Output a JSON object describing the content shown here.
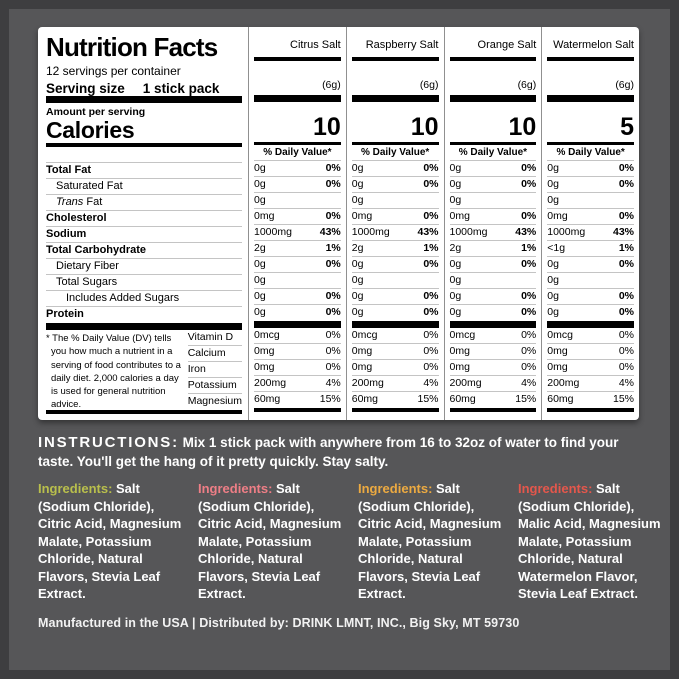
{
  "nutrition_panel": {
    "title": "Nutrition Facts",
    "servings_per_container": "12 servings per container",
    "serving_size_label": "Serving size",
    "serving_size_value": "1 stick pack",
    "amount_per_serving": "Amount per serving",
    "calories_label": "Calories",
    "daily_value_header": "% Daily Value*",
    "nutrient_rows": [
      {
        "label": "Total Fat",
        "indent": 0,
        "bold": true,
        "italic_first_word": false
      },
      {
        "label": "Saturated Fat",
        "indent": 1,
        "bold": false,
        "italic_first_word": false
      },
      {
        "label": "Trans Fat",
        "indent": 1,
        "bold": false,
        "italic_first_word": true
      },
      {
        "label": "Cholesterol",
        "indent": 0,
        "bold": true,
        "italic_first_word": false
      },
      {
        "label": "Sodium",
        "indent": 0,
        "bold": true,
        "italic_first_word": false
      },
      {
        "label": "Total Carbohydrate",
        "indent": 0,
        "bold": true,
        "italic_first_word": false
      },
      {
        "label": "Dietary Fiber",
        "indent": 1,
        "bold": false,
        "italic_first_word": false
      },
      {
        "label": "Total Sugars",
        "indent": 1,
        "bold": false,
        "italic_first_word": false
      },
      {
        "label": "Includes Added Sugars",
        "indent": 2,
        "bold": false,
        "italic_first_word": false
      },
      {
        "label": "Protein",
        "indent": 0,
        "bold": true,
        "italic_first_word": false
      }
    ],
    "micronutrient_labels": [
      "Vitamin D",
      "Calcium",
      "Iron",
      "Potassium",
      "Magnesium"
    ],
    "footnote": "* The % Daily Value (DV) tells you how much a nutrient in a serving of food contributes to a daily diet. 2,000 calories a day is used for general nutrition advice.",
    "flavor_columns": [
      {
        "name": "Citrus Salt",
        "serving_weight": "(6g)",
        "calories": "10",
        "nutrient_values": [
          {
            "amount": "0g",
            "dv": "0%"
          },
          {
            "amount": "0g",
            "dv": "0%"
          },
          {
            "amount": "0g",
            "dv": ""
          },
          {
            "amount": "0mg",
            "dv": "0%"
          },
          {
            "amount": "1000mg",
            "dv": "43%"
          },
          {
            "amount": "2g",
            "dv": "1%"
          },
          {
            "amount": "0g",
            "dv": "0%"
          },
          {
            "amount": "0g",
            "dv": ""
          },
          {
            "amount": "0g",
            "dv": "0%"
          },
          {
            "amount": "0g",
            "dv": "0%"
          }
        ],
        "micronutrient_values": [
          {
            "amount": "0mcg",
            "dv": "0%"
          },
          {
            "amount": "0mg",
            "dv": "0%"
          },
          {
            "amount": "0mg",
            "dv": "0%"
          },
          {
            "amount": "200mg",
            "dv": "4%"
          },
          {
            "amount": "60mg",
            "dv": "15%"
          }
        ]
      },
      {
        "name": "Raspberry Salt",
        "serving_weight": "(6g)",
        "calories": "10",
        "nutrient_values": [
          {
            "amount": "0g",
            "dv": "0%"
          },
          {
            "amount": "0g",
            "dv": "0%"
          },
          {
            "amount": "0g",
            "dv": ""
          },
          {
            "amount": "0mg",
            "dv": "0%"
          },
          {
            "amount": "1000mg",
            "dv": "43%"
          },
          {
            "amount": "2g",
            "dv": "1%"
          },
          {
            "amount": "0g",
            "dv": "0%"
          },
          {
            "amount": "0g",
            "dv": ""
          },
          {
            "amount": "0g",
            "dv": "0%"
          },
          {
            "amount": "0g",
            "dv": "0%"
          }
        ],
        "micronutrient_values": [
          {
            "amount": "0mcg",
            "dv": "0%"
          },
          {
            "amount": "0mg",
            "dv": "0%"
          },
          {
            "amount": "0mg",
            "dv": "0%"
          },
          {
            "amount": "200mg",
            "dv": "4%"
          },
          {
            "amount": "60mg",
            "dv": "15%"
          }
        ]
      },
      {
        "name": "Orange Salt",
        "serving_weight": "(6g)",
        "calories": "10",
        "nutrient_values": [
          {
            "amount": "0g",
            "dv": "0%"
          },
          {
            "amount": "0g",
            "dv": "0%"
          },
          {
            "amount": "0g",
            "dv": ""
          },
          {
            "amount": "0mg",
            "dv": "0%"
          },
          {
            "amount": "1000mg",
            "dv": "43%"
          },
          {
            "amount": "2g",
            "dv": "1%"
          },
          {
            "amount": "0g",
            "dv": "0%"
          },
          {
            "amount": "0g",
            "dv": ""
          },
          {
            "amount": "0g",
            "dv": "0%"
          },
          {
            "amount": "0g",
            "dv": "0%"
          }
        ],
        "micronutrient_values": [
          {
            "amount": "0mcg",
            "dv": "0%"
          },
          {
            "amount": "0mg",
            "dv": "0%"
          },
          {
            "amount": "0mg",
            "dv": "0%"
          },
          {
            "amount": "200mg",
            "dv": "4%"
          },
          {
            "amount": "60mg",
            "dv": "15%"
          }
        ]
      },
      {
        "name": "Watermelon Salt",
        "serving_weight": "(6g)",
        "calories": "5",
        "nutrient_values": [
          {
            "amount": "0g",
            "dv": "0%"
          },
          {
            "amount": "0g",
            "dv": "0%"
          },
          {
            "amount": "0g",
            "dv": ""
          },
          {
            "amount": "0mg",
            "dv": "0%"
          },
          {
            "amount": "1000mg",
            "dv": "43%"
          },
          {
            "amount": "<1g",
            "dv": "1%"
          },
          {
            "amount": "0g",
            "dv": "0%"
          },
          {
            "amount": "0g",
            "dv": ""
          },
          {
            "amount": "0g",
            "dv": "0%"
          },
          {
            "amount": "0g",
            "dv": "0%"
          }
        ],
        "micronutrient_values": [
          {
            "amount": "0mcg",
            "dv": "0%"
          },
          {
            "amount": "0mg",
            "dv": "0%"
          },
          {
            "amount": "0mg",
            "dv": "0%"
          },
          {
            "amount": "200mg",
            "dv": "4%"
          },
          {
            "amount": "60mg",
            "dv": "15%"
          }
        ]
      }
    ]
  },
  "instructions": {
    "label": "INSTRUCTIONS:",
    "text": "Mix 1 stick pack with anywhere from 16 to 32oz of water to find your taste. You'll get the hang of it pretty quickly. Stay salty."
  },
  "ingredients_columns": [
    {
      "flavor": "Citrus Salt",
      "label": "Ingredients:",
      "label_color": "#b9bf4c",
      "text": "Salt (Sodium Chloride), Citric Acid, Magnesium Malate, Potassium Chloride, Natural Flavors, Stevia Leaf Extract."
    },
    {
      "flavor": "Raspberry Salt",
      "label": "Ingredients:",
      "label_color": "#ee7e86",
      "text": "Salt (Sodium Chloride), Citric Acid, Magnesium Malate, Potassium Chloride, Natural Flavors, Stevia Leaf Extract."
    },
    {
      "flavor": "Orange Salt",
      "label": "Ingredients:",
      "label_color": "#ecaa41",
      "text": "Salt (Sodium Chloride), Citric Acid, Magnesium Malate, Potassium Chloride, Natural Flavors, Stevia Leaf Extract."
    },
    {
      "flavor": "Watermelon Salt",
      "label": "Ingredients:",
      "label_color": "#e4574c",
      "text": "Salt (Sodium Chloride), Malic Acid, Magnesium Malate, Potassium Chloride, Natural Watermelon Flavor, Stevia Leaf Extract."
    }
  ],
  "footer": {
    "text": "Manufactured in the USA  |  Distributed by: DRINK LMNT, INC., Big Sky, MT 59730"
  },
  "colors": {
    "background": "#565658",
    "frame": "#3e3e40",
    "panel": "#ffffff",
    "panel_text": "#000000",
    "light_text": "#ffffff"
  }
}
